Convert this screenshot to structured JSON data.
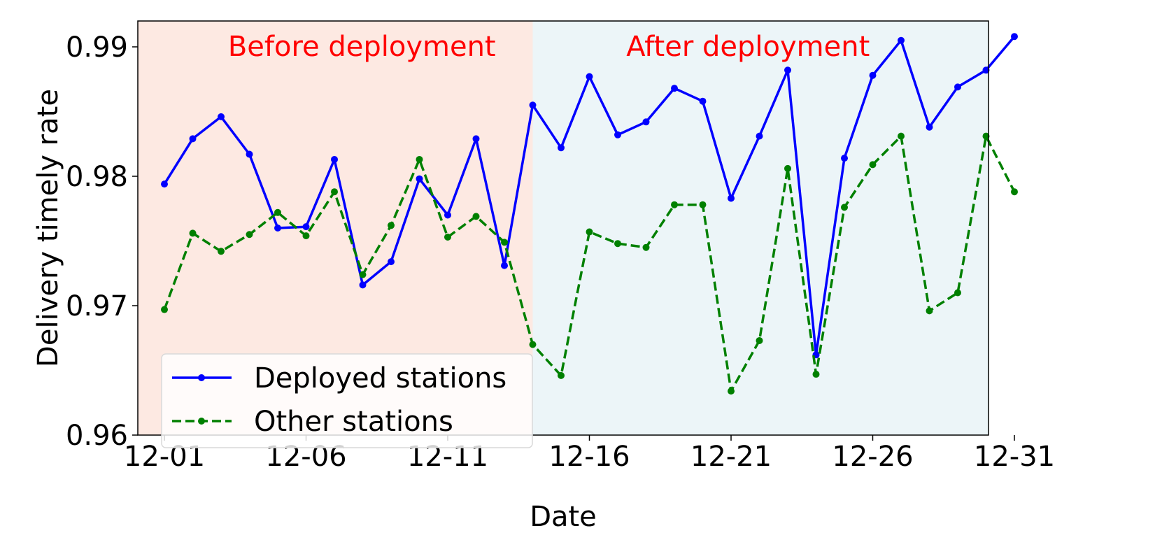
{
  "chart_data": {
    "type": "line",
    "xlabel": "Date",
    "ylabel": "Delivery timely rate",
    "ylim": [
      0.96,
      0.992
    ],
    "yticks": [
      "0.96",
      "0.97",
      "0.98",
      "0.99"
    ],
    "xtick_labels": [
      "12-01",
      "12-06",
      "12-11",
      "12-16",
      "12-21",
      "12-26",
      "12-31"
    ],
    "x": [
      "12-01",
      "12-02",
      "12-03",
      "12-04",
      "12-05",
      "12-06",
      "12-07",
      "12-08",
      "12-09",
      "12-10",
      "12-11",
      "12-12",
      "12-13",
      "12-14",
      "12-15",
      "12-16",
      "12-17",
      "12-18",
      "12-19",
      "12-20",
      "12-21",
      "12-22",
      "12-23",
      "12-24",
      "12-25",
      "12-26",
      "12-27",
      "12-28",
      "12-29",
      "12-30",
      "12-31"
    ],
    "regions": [
      {
        "label": "Before deployment",
        "from": "12-01",
        "to": "12-14",
        "color": "#fde9e2"
      },
      {
        "label": "After deployment",
        "from": "12-14",
        "to": "12-31",
        "color": "#ecf5f8"
      }
    ],
    "region_label_color": "#ff0000",
    "legend_position": "lower-left",
    "series": [
      {
        "name": "Deployed stations",
        "color": "#0000ff",
        "style": "solid",
        "values": [
          0.9794,
          0.9829,
          0.9846,
          0.9817,
          0.976,
          0.9761,
          0.9813,
          0.9716,
          0.9734,
          0.9798,
          0.977,
          0.9829,
          0.9731,
          0.9855,
          0.9822,
          0.9877,
          0.9832,
          0.9842,
          0.9868,
          0.9858,
          0.9783,
          0.9831,
          0.9882,
          0.9662,
          0.9814,
          0.9878,
          0.9905,
          0.9838,
          0.9869,
          0.9882,
          0.9908
        ]
      },
      {
        "name": "Other stations",
        "color": "#008000",
        "style": "dashed",
        "values": [
          0.9697,
          0.9756,
          0.9742,
          0.9755,
          0.9772,
          0.9754,
          0.9788,
          0.9724,
          0.9762,
          0.9813,
          0.9753,
          0.9769,
          0.9749,
          0.967,
          0.9646,
          0.9757,
          0.9748,
          0.9745,
          0.9778,
          0.9778,
          0.9634,
          0.9673,
          0.9806,
          0.9647,
          0.9776,
          0.9809,
          0.9831,
          0.9696,
          0.971,
          0.9831,
          0.9788
        ]
      }
    ]
  }
}
